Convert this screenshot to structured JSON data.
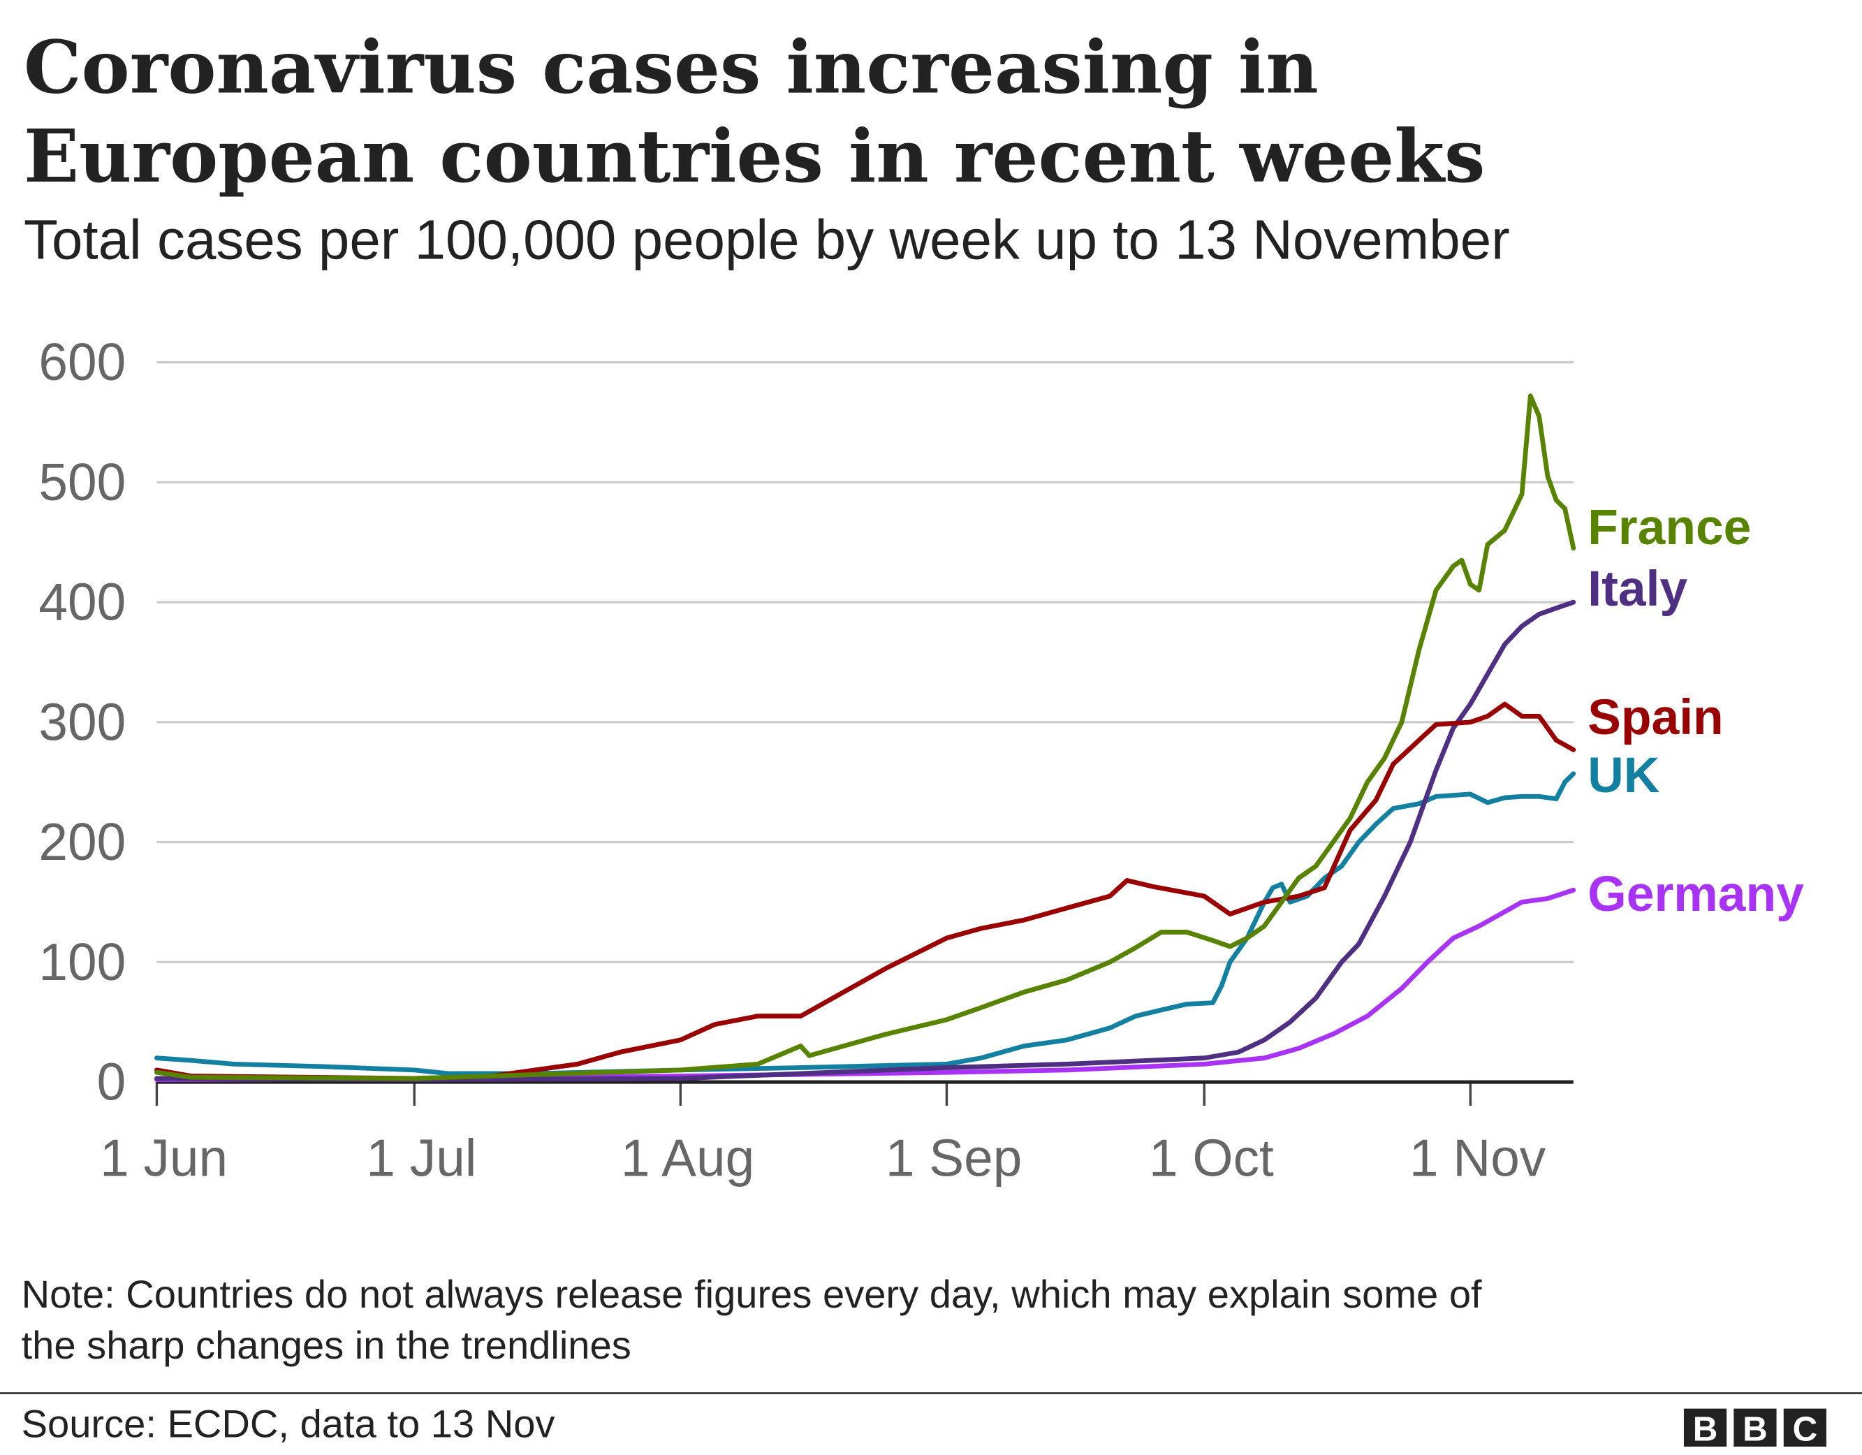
{
  "title_line1": "Coronavirus cases increasing in",
  "title_line2": "European countries in recent weeks",
  "subtitle": "Total cases per 100,000 people by week up to 13 November",
  "note_line1": "Note: Countries do not always release figures every day, which may explain some of",
  "note_line2": "the sharp changes in the trendlines",
  "source": "Source: ECDC, data to 13 Nov",
  "logo_text": "BBC",
  "chart_data": {
    "type": "line",
    "title": "Coronavirus cases increasing in European countries in recent weeks",
    "subtitle": "Total cases per 100,000 people by week up to 13 November",
    "xlim": [
      "2020-06-01",
      "2020-11-13"
    ],
    "ylim": [
      0,
      600
    ],
    "yticks": [
      0,
      100,
      200,
      300,
      400,
      500,
      600
    ],
    "xticks": [
      {
        "date": "2020-06-01",
        "label": "1 Jun"
      },
      {
        "date": "2020-07-01",
        "label": "1 Jul"
      },
      {
        "date": "2020-08-01",
        "label": "1 Aug"
      },
      {
        "date": "2020-09-01",
        "label": "1 Sep"
      },
      {
        "date": "2020-10-01",
        "label": "1 Oct"
      },
      {
        "date": "2020-11-01",
        "label": "1 Nov"
      }
    ],
    "grid": true,
    "legend": "direct labels at line ends (right)",
    "series": [
      {
        "name": "France",
        "color": "#588300",
        "points": [
          [
            "2020-06-01",
            8
          ],
          [
            "2020-06-05",
            4
          ],
          [
            "2020-07-01",
            3
          ],
          [
            "2020-08-01",
            10
          ],
          [
            "2020-08-10",
            15
          ],
          [
            "2020-08-15",
            30
          ],
          [
            "2020-08-16",
            22
          ],
          [
            "2020-08-20",
            30
          ],
          [
            "2020-08-25",
            40
          ],
          [
            "2020-09-01",
            52
          ],
          [
            "2020-09-05",
            62
          ],
          [
            "2020-09-10",
            75
          ],
          [
            "2020-09-15",
            85
          ],
          [
            "2020-09-20",
            100
          ],
          [
            "2020-09-23",
            112
          ],
          [
            "2020-09-26",
            125
          ],
          [
            "2020-09-29",
            125
          ],
          [
            "2020-10-02",
            118
          ],
          [
            "2020-10-04",
            113
          ],
          [
            "2020-10-06",
            120
          ],
          [
            "2020-10-08",
            130
          ],
          [
            "2020-10-10",
            150
          ],
          [
            "2020-10-12",
            170
          ],
          [
            "2020-10-14",
            180
          ],
          [
            "2020-10-16",
            200
          ],
          [
            "2020-10-18",
            220
          ],
          [
            "2020-10-20",
            250
          ],
          [
            "2020-10-22",
            270
          ],
          [
            "2020-10-24",
            300
          ],
          [
            "2020-10-26",
            360
          ],
          [
            "2020-10-28",
            410
          ],
          [
            "2020-10-30",
            430
          ],
          [
            "2020-10-31",
            435
          ],
          [
            "2020-11-01",
            415
          ],
          [
            "2020-11-02",
            410
          ],
          [
            "2020-11-03",
            448
          ],
          [
            "2020-11-05",
            460
          ],
          [
            "2020-11-07",
            490
          ],
          [
            "2020-11-08",
            572
          ],
          [
            "2020-11-09",
            555
          ],
          [
            "2020-11-10",
            505
          ],
          [
            "2020-11-11",
            485
          ],
          [
            "2020-11-12",
            478
          ],
          [
            "2020-11-13",
            445
          ]
        ]
      },
      {
        "name": "Italy",
        "color": "#4e2f82",
        "points": [
          [
            "2020-06-01",
            3
          ],
          [
            "2020-07-01",
            2
          ],
          [
            "2020-08-01",
            3
          ],
          [
            "2020-09-01",
            12
          ],
          [
            "2020-09-15",
            15
          ],
          [
            "2020-10-01",
            20
          ],
          [
            "2020-10-05",
            25
          ],
          [
            "2020-10-08",
            35
          ],
          [
            "2020-10-11",
            50
          ],
          [
            "2020-10-14",
            70
          ],
          [
            "2020-10-17",
            100
          ],
          [
            "2020-10-19",
            115
          ],
          [
            "2020-10-22",
            155
          ],
          [
            "2020-10-25",
            200
          ],
          [
            "2020-10-28",
            260
          ],
          [
            "2020-10-30",
            295
          ],
          [
            "2020-11-01",
            315
          ],
          [
            "2020-11-03",
            340
          ],
          [
            "2020-11-05",
            365
          ],
          [
            "2020-11-07",
            380
          ],
          [
            "2020-11-09",
            390
          ],
          [
            "2020-11-11",
            395
          ],
          [
            "2020-11-13",
            400
          ]
        ]
      },
      {
        "name": "Spain",
        "color": "#990000",
        "points": [
          [
            "2020-06-01",
            10
          ],
          [
            "2020-06-05",
            5
          ],
          [
            "2020-07-01",
            3
          ],
          [
            "2020-07-10",
            5
          ],
          [
            "2020-07-20",
            15
          ],
          [
            "2020-07-25",
            25
          ],
          [
            "2020-08-01",
            35
          ],
          [
            "2020-08-05",
            48
          ],
          [
            "2020-08-10",
            55
          ],
          [
            "2020-08-15",
            55
          ],
          [
            "2020-08-20",
            75
          ],
          [
            "2020-08-25",
            95
          ],
          [
            "2020-09-01",
            120
          ],
          [
            "2020-09-05",
            128
          ],
          [
            "2020-09-10",
            135
          ],
          [
            "2020-09-15",
            145
          ],
          [
            "2020-09-20",
            155
          ],
          [
            "2020-09-22",
            168
          ],
          [
            "2020-09-25",
            163
          ],
          [
            "2020-10-01",
            155
          ],
          [
            "2020-10-04",
            140
          ],
          [
            "2020-10-08",
            150
          ],
          [
            "2020-10-12",
            155
          ],
          [
            "2020-10-15",
            162
          ],
          [
            "2020-10-18",
            210
          ],
          [
            "2020-10-21",
            235
          ],
          [
            "2020-10-23",
            265
          ],
          [
            "2020-10-26",
            285
          ],
          [
            "2020-10-28",
            298
          ],
          [
            "2020-11-01",
            300
          ],
          [
            "2020-11-03",
            305
          ],
          [
            "2020-11-05",
            315
          ],
          [
            "2020-11-07",
            305
          ],
          [
            "2020-11-09",
            305
          ],
          [
            "2020-11-11",
            285
          ],
          [
            "2020-11-13",
            277
          ]
        ]
      },
      {
        "name": "UK",
        "color": "#1380a1",
        "points": [
          [
            "2020-06-01",
            20
          ],
          [
            "2020-06-05",
            18
          ],
          [
            "2020-06-10",
            15
          ],
          [
            "2020-06-20",
            13
          ],
          [
            "2020-07-01",
            10
          ],
          [
            "2020-07-05",
            7
          ],
          [
            "2020-07-15",
            7
          ],
          [
            "2020-08-01",
            10
          ],
          [
            "2020-08-15",
            12
          ],
          [
            "2020-09-01",
            15
          ],
          [
            "2020-09-05",
            20
          ],
          [
            "2020-09-10",
            30
          ],
          [
            "2020-09-15",
            35
          ],
          [
            "2020-09-20",
            45
          ],
          [
            "2020-09-23",
            55
          ],
          [
            "2020-09-26",
            60
          ],
          [
            "2020-09-29",
            65
          ],
          [
            "2020-10-02",
            66
          ],
          [
            "2020-10-03",
            80
          ],
          [
            "2020-10-04",
            100
          ],
          [
            "2020-10-06",
            120
          ],
          [
            "2020-10-08",
            150
          ],
          [
            "2020-10-09",
            162
          ],
          [
            "2020-10-10",
            165
          ],
          [
            "2020-10-11",
            150
          ],
          [
            "2020-10-13",
            155
          ],
          [
            "2020-10-15",
            170
          ],
          [
            "2020-10-17",
            180
          ],
          [
            "2020-10-19",
            200
          ],
          [
            "2020-10-21",
            215
          ],
          [
            "2020-10-23",
            228
          ],
          [
            "2020-10-26",
            232
          ],
          [
            "2020-10-28",
            238
          ],
          [
            "2020-11-01",
            240
          ],
          [
            "2020-11-03",
            233
          ],
          [
            "2020-11-05",
            237
          ],
          [
            "2020-11-07",
            238
          ],
          [
            "2020-11-09",
            238
          ],
          [
            "2020-11-11",
            236
          ],
          [
            "2020-11-12",
            250
          ],
          [
            "2020-11-13",
            257
          ]
        ]
      },
      {
        "name": "Germany",
        "color": "#a933f5",
        "points": [
          [
            "2020-06-01",
            2
          ],
          [
            "2020-07-01",
            3
          ],
          [
            "2020-08-01",
            5
          ],
          [
            "2020-09-01",
            8
          ],
          [
            "2020-09-15",
            10
          ],
          [
            "2020-10-01",
            15
          ],
          [
            "2020-10-08",
            20
          ],
          [
            "2020-10-12",
            28
          ],
          [
            "2020-10-16",
            40
          ],
          [
            "2020-10-20",
            55
          ],
          [
            "2020-10-24",
            78
          ],
          [
            "2020-10-27",
            100
          ],
          [
            "2020-10-30",
            120
          ],
          [
            "2020-11-02",
            130
          ],
          [
            "2020-11-05",
            142
          ],
          [
            "2020-11-07",
            150
          ],
          [
            "2020-11-10",
            153
          ],
          [
            "2020-11-13",
            160
          ]
        ]
      }
    ]
  }
}
